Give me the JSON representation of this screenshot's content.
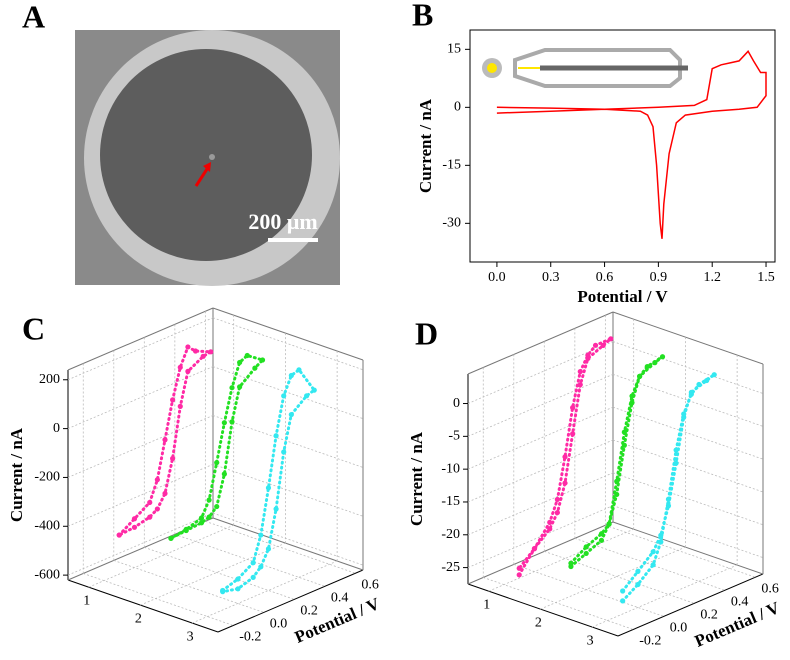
{
  "chart_data": [
    {
      "type": "image",
      "panel_label": "A",
      "scale_bar": "200 μm"
    },
    {
      "type": "line",
      "panel_label": "B",
      "xlabel": "Potential / V",
      "ylabel": "Current / nA",
      "xlim": [
        -0.15,
        1.55
      ],
      "ylim": [
        -40,
        20
      ],
      "xticks": [
        {
          "value": 0,
          "label": "0.0"
        },
        0.3,
        0.6,
        0.9,
        1.2,
        1.5
      ],
      "yticks": [
        15,
        0,
        -15,
        -30
      ],
      "series": [
        {
          "color": "#ff0000",
          "x": [
            0.0,
            0.3,
            0.6,
            0.9,
            1.1,
            1.17,
            1.2,
            1.25,
            1.3,
            1.35,
            1.4,
            1.43,
            1.47,
            1.5,
            1.5,
            1.45,
            1.35,
            1.2,
            1.05,
            1.0,
            0.96,
            0.93,
            0.92,
            0.91,
            0.89,
            0.87,
            0.84,
            0.8,
            0.6,
            0.3,
            0.0
          ],
          "values": [
            -1.5,
            -1,
            -0.5,
            0,
            0.5,
            2,
            10,
            11,
            11.5,
            12,
            14.5,
            12,
            9,
            9,
            3,
            0,
            -0.5,
            -1,
            -2,
            -4,
            -12,
            -25,
            -34,
            -30,
            -15,
            -5,
            -2,
            -1,
            -0.5,
            -0.2,
            0
          ]
        }
      ]
    },
    {
      "type": "scatter3d",
      "panel_label": "C",
      "ylabel": "Current / nA",
      "zlabel": "Potential / V",
      "xlim": [
        0.6,
        3.5
      ],
      "xticks": [
        1,
        2,
        3
      ],
      "ylim": [
        -620,
        240
      ],
      "yticks": [
        200,
        0,
        -200,
        -400,
        -600
      ],
      "zlim": [
        -0.3,
        0.65
      ],
      "zticks": [
        -0.2,
        {
          "value": 0,
          "label": "0.0"
        },
        0.2,
        0.4,
        0.6
      ],
      "series": [
        {
          "color": "#ff2aa5",
          "x": 1,
          "z": [
            -0.1,
            0,
            0.1,
            0.15,
            0.2,
            0.25,
            0.3,
            0.35,
            0.4,
            0.5,
            0.45,
            0.35,
            0.3,
            0.25,
            0.2,
            0.15,
            0.1,
            0,
            -0.1
          ],
          "values": [
            -460,
            -420,
            -380,
            -300,
            -150,
            0,
            120,
            190,
            160,
            130,
            125,
            90,
            -40,
            -240,
            -370,
            -420,
            -440,
            -455,
            -460
          ]
        },
        {
          "color": "#22e022",
          "x": 2,
          "z": [
            -0.1,
            0,
            0.1,
            0.15,
            0.2,
            0.25,
            0.3,
            0.35,
            0.4,
            0.5,
            0.45,
            0.35,
            0.3,
            0.25,
            0.2,
            0.15,
            0.1,
            0,
            -0.1
          ],
          "values": [
            -400,
            -390,
            -370,
            -310,
            -170,
            -20,
            110,
            200,
            215,
            170,
            150,
            100,
            -30,
            -230,
            -350,
            -380,
            -390,
            -395,
            -400
          ]
        },
        {
          "color": "#33e8f0",
          "x": 3,
          "z": [
            -0.1,
            0,
            0.1,
            0.15,
            0.2,
            0.25,
            0.3,
            0.35,
            0.4,
            0.5,
            0.45,
            0.35,
            0.3,
            0.25,
            0.2,
            0.15,
            0.1,
            0,
            -0.1
          ],
          "values": [
            -540,
            -520,
            -480,
            -380,
            -200,
            0,
            150,
            220,
            230,
            120,
            110,
            60,
            -80,
            -300,
            -450,
            -510,
            -540,
            -560,
            -545
          ]
        }
      ]
    },
    {
      "type": "scatter3d",
      "panel_label": "D",
      "ylabel": "Current / nA",
      "zlabel": "Potential / V",
      "xlim": [
        0.6,
        3.5
      ],
      "xticks": [
        1,
        2,
        3
      ],
      "ylim": [
        -27.5,
        4.5
      ],
      "yticks": [
        0,
        -5,
        -10,
        -15,
        -20,
        -25
      ],
      "zlim": [
        -0.3,
        0.65
      ],
      "zticks": [
        -0.2,
        {
          "value": 0,
          "label": "0.0"
        },
        0.2,
        0.4,
        0.6
      ],
      "series": [
        {
          "color": "#ff2aa5",
          "x": 1,
          "z": [
            -0.1,
            0,
            0.1,
            0.15,
            0.2,
            0.25,
            0.3,
            0.35,
            0.4,
            0.5,
            0.45,
            0.35,
            0.3,
            0.25,
            0.2,
            0.15,
            0.1,
            0,
            -0.1
          ],
          "values": [
            -27,
            -24,
            -21,
            -18,
            -12,
            -5,
            0,
            2,
            3,
            3,
            2.5,
            1.5,
            -2,
            -9,
            -16,
            -20,
            -22,
            -24,
            -26
          ]
        },
        {
          "color": "#22e022",
          "x": 2,
          "z": [
            -0.1,
            0,
            0.1,
            0.15,
            0.2,
            0.25,
            0.3,
            0.35,
            0.4,
            0.5,
            0.45,
            0.35,
            0.3,
            0.25,
            0.2,
            0.15,
            0.1,
            0,
            -0.1
          ],
          "values": [
            -23,
            -22,
            -21,
            -19,
            -13,
            -6,
            -1,
            1.5,
            2.5,
            3,
            2.6,
            1.5,
            -2,
            -8,
            -15,
            -19,
            -20,
            -21,
            -22.5
          ]
        },
        {
          "color": "#33e8f0",
          "x": 3,
          "z": [
            -0.1,
            0,
            0.1,
            0.15,
            0.2,
            0.25,
            0.3,
            0.35,
            0.4,
            0.5,
            0.45,
            0.35,
            0.3,
            0.25,
            0.2,
            0.15,
            0.1,
            0,
            -0.1
          ],
          "values": [
            -25.5,
            -24,
            -22,
            -19,
            -13,
            -6,
            -1,
            1.5,
            2.5,
            3,
            2.6,
            1.8,
            -1.5,
            -8,
            -14,
            -18,
            -20,
            -22,
            -24
          ]
        }
      ]
    }
  ]
}
